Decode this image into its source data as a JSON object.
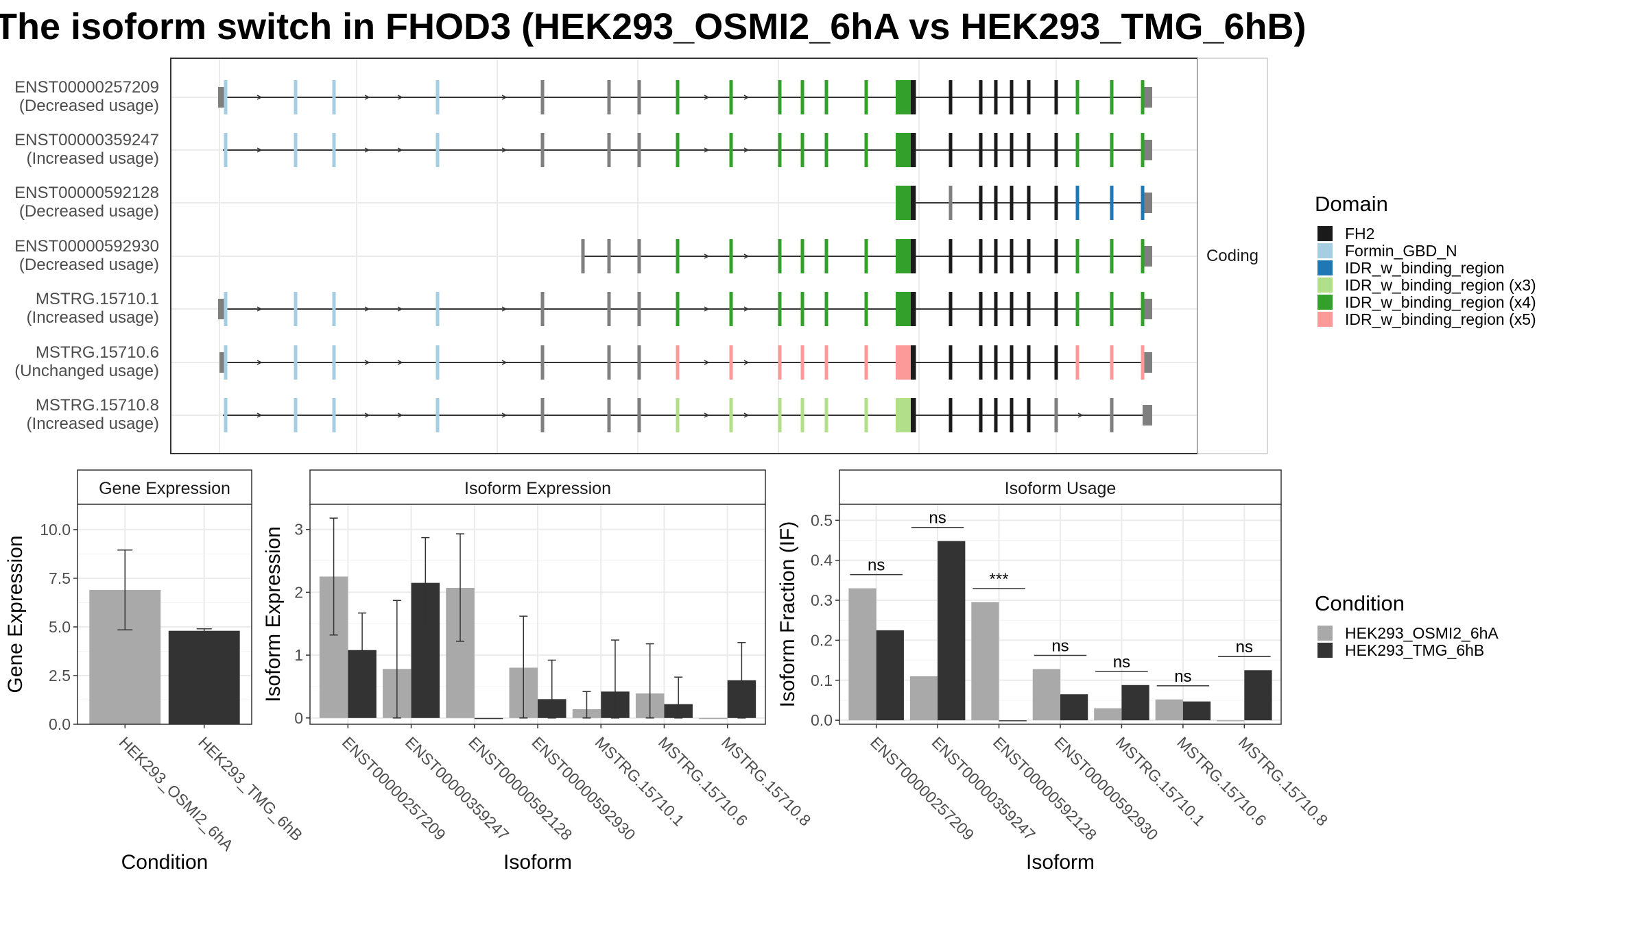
{
  "title": "The isoform switch in FHOD3 (HEK293_OSMI2_6hA vs HEK293_TMG_6hB)",
  "structure_panel": {
    "strip_label": "Coding",
    "transcripts": [
      {
        "id": "ENST00000257209",
        "usage": "(Decreased usage)"
      },
      {
        "id": "ENST00000359247",
        "usage": "(Increased usage)"
      },
      {
        "id": "ENST00000592128",
        "usage": "(Decreased usage)"
      },
      {
        "id": "ENST00000592930",
        "usage": "(Decreased usage)"
      },
      {
        "id": "MSTRG.15710.1",
        "usage": "(Increased usage)"
      },
      {
        "id": "MSTRG.15710.6",
        "usage": "(Unchanged usage)"
      },
      {
        "id": "MSTRG.15710.8",
        "usage": "(Increased usage)"
      }
    ]
  },
  "domain_legend": {
    "title": "Domain",
    "items": [
      {
        "label": "FH2",
        "color": "#1a1a1a"
      },
      {
        "label": "Formin_GBD_N",
        "color": "#a6cee3"
      },
      {
        "label": "IDR_w_binding_region",
        "color": "#1f78b4"
      },
      {
        "label": "IDR_w_binding_region (x3)",
        "color": "#b2df8a"
      },
      {
        "label": "IDR_w_binding_region (x4)",
        "color": "#33a02c"
      },
      {
        "label": "IDR_w_binding_region (x5)",
        "color": "#fb9a99"
      }
    ]
  },
  "condition_legend": {
    "title": "Condition",
    "items": [
      {
        "label": "HEK293_OSMI2_6hA",
        "color": "#a9a9a9"
      },
      {
        "label": "HEK293_TMG_6hB",
        "color": "#333333"
      }
    ]
  },
  "chart_data": [
    {
      "type": "bar",
      "title": "Gene Expression",
      "xlabel": "Condition",
      "ylabel": "Gene Expression",
      "categories": [
        "HEK293_OSMI2_6hA",
        "HEK293_TMG_6hB"
      ],
      "values": [
        6.9,
        4.8
      ],
      "error_low": [
        4.85,
        4.7
      ],
      "error_high": [
        8.95,
        4.9
      ],
      "ylim": [
        0,
        11.3
      ],
      "yticks": [
        "0.0",
        "2.5",
        "5.0",
        "7.5",
        "10.0"
      ],
      "ytick_values": [
        0,
        2.5,
        5,
        7.5,
        10
      ],
      "grid": true
    },
    {
      "type": "bar",
      "title": "Isoform Expression",
      "xlabel": "Isoform",
      "ylabel": "Isoform Expression",
      "categories": [
        "ENST00000257209",
        "ENST00000359247",
        "ENST00000592128",
        "ENST00000592930",
        "MSTRG.15710.1",
        "MSTRG.15710.6",
        "MSTRG.15710.8"
      ],
      "series": [
        {
          "name": "HEK293_OSMI2_6hA",
          "values": [
            2.25,
            0.78,
            2.07,
            0.8,
            0.14,
            0.39,
            0.0
          ],
          "error_low": [
            1.32,
            0.0,
            1.22,
            0.0,
            0.0,
            0.0,
            0.0
          ],
          "error_high": [
            3.18,
            1.87,
            2.93,
            1.62,
            0.42,
            1.18,
            0.0
          ]
        },
        {
          "name": "HEK293_TMG_6hB",
          "values": [
            1.08,
            2.15,
            0.0,
            0.3,
            0.42,
            0.22,
            0.6
          ],
          "error_low": [
            0.5,
            1.42,
            0.0,
            0.0,
            0.0,
            0.0,
            0.0
          ],
          "error_high": [
            1.67,
            2.87,
            0.0,
            0.92,
            1.24,
            0.65,
            1.2
          ]
        }
      ],
      "ylim": [
        -0.1,
        3.4
      ],
      "yticks": [
        "0",
        "1",
        "2",
        "3"
      ],
      "ytick_values": [
        0,
        1,
        2,
        3
      ],
      "grid": true
    },
    {
      "type": "bar",
      "title": "Isoform Usage",
      "xlabel": "Isoform",
      "ylabel": "Isoform Fraction (IF)",
      "categories": [
        "ENST00000257209",
        "ENST00000359247",
        "ENST00000592128",
        "ENST00000592930",
        "MSTRG.15710.1",
        "MSTRG.15710.6",
        "MSTRG.15710.8"
      ],
      "series": [
        {
          "name": "HEK293_OSMI2_6hA",
          "values": [
            0.33,
            0.11,
            0.295,
            0.128,
            0.03,
            0.052,
            0.0
          ]
        },
        {
          "name": "HEK293_TMG_6hB",
          "values": [
            0.225,
            0.448,
            0.0,
            0.065,
            0.088,
            0.047,
            0.125
          ]
        }
      ],
      "significance": [
        "ns",
        "ns",
        "***",
        "ns",
        "ns",
        "ns",
        "ns"
      ],
      "ylim": [
        -0.01,
        0.54
      ],
      "yticks": [
        "0.0",
        "0.1",
        "0.2",
        "0.3",
        "0.4",
        "0.5"
      ],
      "ytick_values": [
        0,
        0.1,
        0.2,
        0.3,
        0.4,
        0.5
      ],
      "grid": true
    }
  ]
}
